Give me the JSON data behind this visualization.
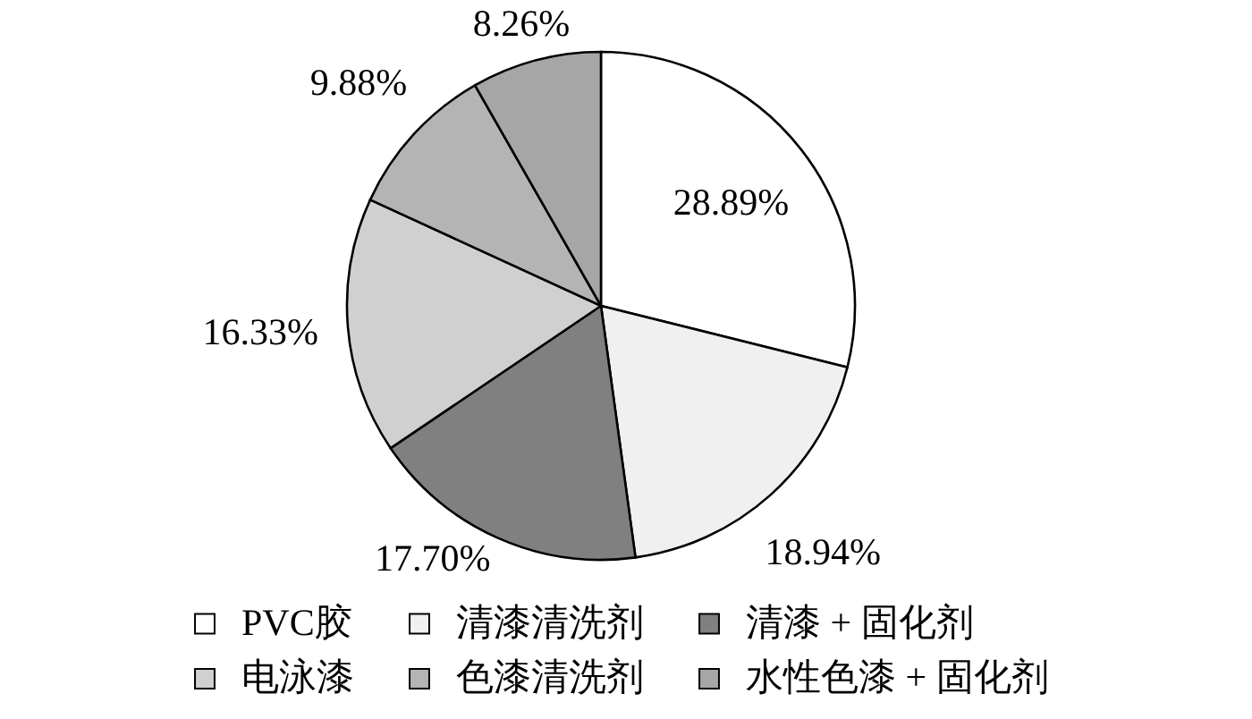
{
  "chart_data": {
    "type": "pie",
    "categories": [
      "PVC胶",
      "清漆清洗剂",
      "清漆 + 固化剂",
      "电泳漆",
      "色漆清洗剂",
      "水性色漆 + 固化剂"
    ],
    "values": [
      28.89,
      18.94,
      17.7,
      16.33,
      9.88,
      8.26
    ],
    "value_labels": [
      "28.89%",
      "18.94%",
      "17.70%",
      "16.33%",
      "9.88%",
      "8.26%"
    ],
    "colors": [
      "#ffffff",
      "#f0f0f0",
      "#808080",
      "#d0d0d0",
      "#b4b4b4",
      "#a6a6a6"
    ],
    "legend": "bottom"
  }
}
